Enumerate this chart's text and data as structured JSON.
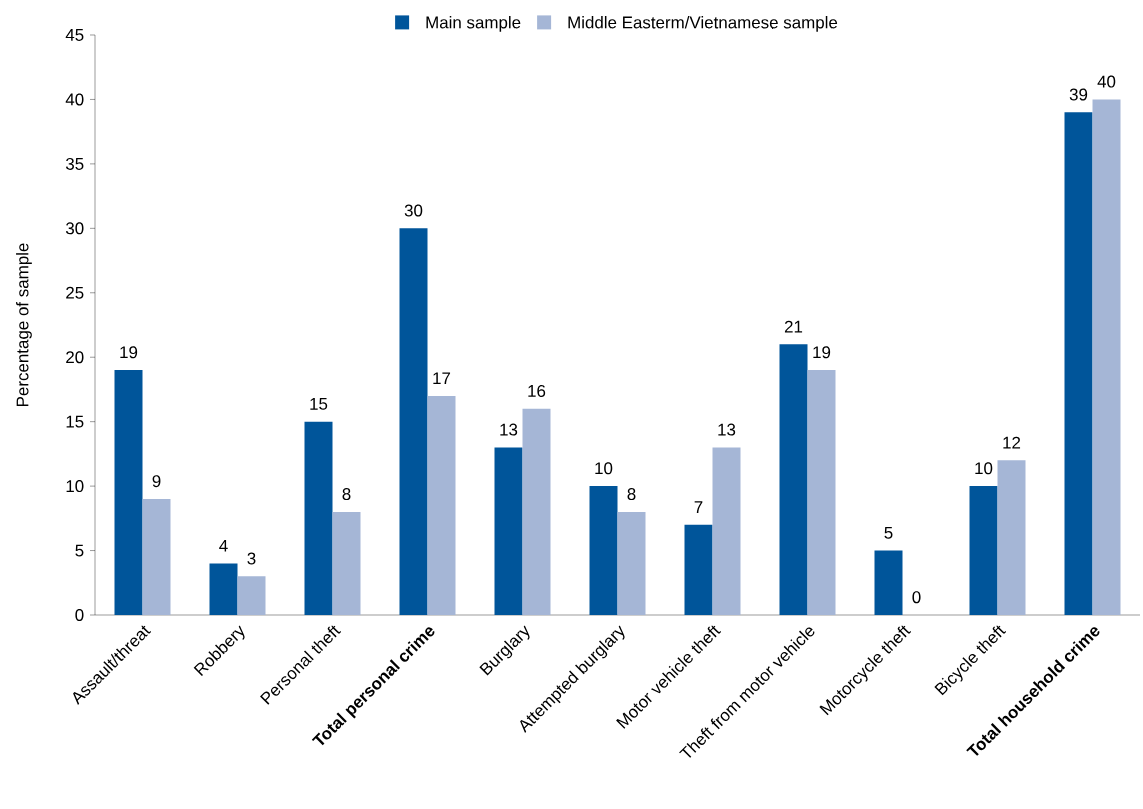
{
  "chart_data": {
    "type": "bar",
    "ylabel": "Percentage of sample",
    "categories": [
      "Assault/threat",
      "Robbery",
      "Personal theft",
      "**Total personal crime**",
      "Burglary",
      "Attempted burglary",
      "Motor vehicle theft",
      "Theft from motor vehicle",
      "Motorcycle theft",
      "Bicycle theft",
      "**Total household crime**"
    ],
    "series": [
      {
        "name": "Main sample",
        "color": "#00559a",
        "values": [
          19,
          4,
          15,
          30,
          13,
          10,
          7,
          21,
          5,
          10,
          39
        ]
      },
      {
        "name": "Middle Easterm/Vietnamese sample",
        "color": "#a5b6d6",
        "values": [
          9,
          3,
          8,
          17,
          16,
          8,
          13,
          19,
          0,
          12,
          40
        ]
      }
    ],
    "ylim": [
      0,
      45
    ],
    "yticks": [
      0,
      5,
      10,
      15,
      20,
      25,
      30,
      35,
      40,
      45
    ],
    "data_labels": true,
    "legend": "top",
    "grid": false
  }
}
